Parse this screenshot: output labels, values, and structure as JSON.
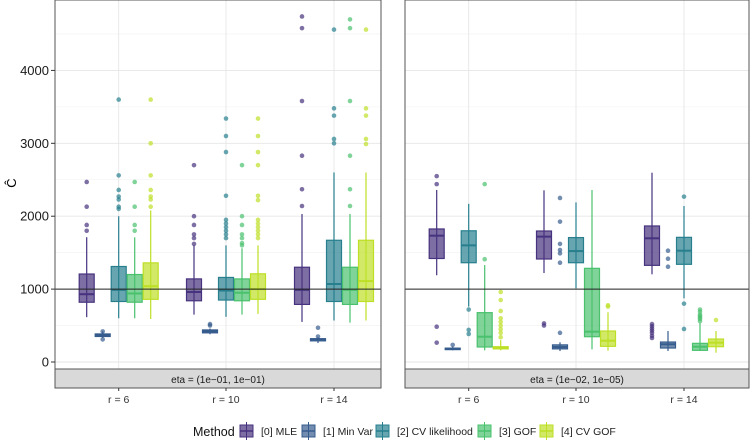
{
  "chart_data": {
    "type": "boxplot",
    "ylabel": "Ĉ",
    "xlabel": "",
    "ylim": [
      -96,
      4966
    ],
    "yticks": [
      0,
      1000,
      2000,
      3000,
      4000
    ],
    "reference_line": 1000,
    "grid": true,
    "legend": {
      "title": "Method",
      "position": "bottom"
    },
    "categories": [
      "r = 6",
      "r = 10",
      "r = 14"
    ],
    "methods": [
      {
        "name": "[0] MLE",
        "color": "#46327e"
      },
      {
        "name": "[1] Min Var",
        "color": "#365c8d"
      },
      {
        "name": "[2] CV likelihood",
        "color": "#277f8e"
      },
      {
        "name": "[3] GOF",
        "color": "#4ac16d"
      },
      {
        "name": "[4] CV GOF",
        "color": "#bddf26"
      }
    ],
    "facets": [
      {
        "label": "eta = (1e−01, 1e−01)",
        "groups": [
          [
            {
              "lo": 615,
              "q1": 820,
              "med": 930,
              "q3": 1207,
              "hi": 1712,
              "out": [
                1800,
                1880,
                2130,
                2470
              ]
            },
            {
              "lo": 330,
              "q1": 350,
              "med": 370,
              "q3": 385,
              "hi": 420,
              "out": [
                310,
                420
              ]
            },
            {
              "lo": 600,
              "q1": 830,
              "med": 990,
              "q3": 1310,
              "hi": 2000,
              "out": [
                2100,
                2130,
                2230,
                2270,
                2360,
                2560,
                3600
              ]
            },
            {
              "lo": 600,
              "q1": 820,
              "med": 940,
              "q3": 1200,
              "hi": 1710,
              "out": [
                1800,
                1880,
                2130,
                2470
              ]
            },
            {
              "lo": 590,
              "q1": 860,
              "med": 1040,
              "q3": 1360,
              "hi": 2080,
              "out": [
                2130,
                2230,
                2270,
                2360,
                2560,
                3000,
                3600
              ]
            }
          ],
          [
            {
              "lo": 650,
              "q1": 840,
              "med": 960,
              "q3": 1140,
              "hi": 1600,
              "out": [
                1620,
                1700,
                1750,
                1880,
                2000,
                2700
              ]
            },
            {
              "lo": 380,
              "q1": 400,
              "med": 420,
              "q3": 440,
              "hi": 460,
              "out": [
                500,
                520
              ]
            },
            {
              "lo": 620,
              "q1": 850,
              "med": 980,
              "q3": 1160,
              "hi": 1600,
              "out": [
                1700,
                1750,
                1800,
                1850,
                1900,
                1950,
                2280,
                2880,
                3100,
                3340
              ]
            },
            {
              "lo": 650,
              "q1": 840,
              "med": 950,
              "q3": 1140,
              "hi": 1560,
              "out": [
                1600,
                1630,
                1700,
                1750,
                1880,
                2000,
                2700
              ]
            },
            {
              "lo": 660,
              "q1": 860,
              "med": 1000,
              "q3": 1210,
              "hi": 1600,
              "out": [
                1700,
                1750,
                1800,
                1850,
                1900,
                1950,
                2220,
                2280,
                2700,
                2880,
                3100,
                3340
              ]
            }
          ],
          [
            {
              "lo": 550,
              "q1": 790,
              "med": 990,
              "q3": 1300,
              "hi": 2030,
              "out": [
                2140,
                2370,
                2830,
                3580,
                4580,
                4740
              ]
            },
            {
              "lo": 260,
              "q1": 290,
              "med": 310,
              "q3": 320,
              "hi": 340,
              "out": [
                350,
                470
              ]
            },
            {
              "lo": 570,
              "q1": 830,
              "med": 1070,
              "q3": 1670,
              "hi": 2600,
              "out": [
                3000,
                3060,
                3380,
                3480,
                4560
              ]
            },
            {
              "lo": 540,
              "q1": 790,
              "med": 990,
              "q3": 1300,
              "hi": 2030,
              "out": [
                2140,
                2370,
                2830,
                3580,
                4580,
                4700
              ]
            },
            {
              "lo": 570,
              "q1": 830,
              "med": 1110,
              "q3": 1670,
              "hi": 2600,
              "out": [
                2990,
                3060,
                3380,
                3480,
                4560
              ]
            }
          ]
        ]
      },
      {
        "label": "eta = (1e−02, 1e−05)",
        "groups": [
          [
            {
              "lo": 1190,
              "q1": 1420,
              "med": 1733,
              "q3": 1825,
              "hi": 2360,
              "out": [
                265,
                484,
                2440,
                2550
              ]
            },
            {
              "lo": 160,
              "q1": 170,
              "med": 180,
              "q3": 190,
              "hi": 210,
              "out": [
                235
              ]
            },
            {
              "lo": 760,
              "q1": 1362,
              "med": 1600,
              "q3": 1800,
              "hi": 2170,
              "out": [
                385,
                440,
                720
              ]
            },
            {
              "lo": 160,
              "q1": 206,
              "med": 347,
              "q3": 677,
              "hi": 1330,
              "out": [
                1410,
                2440
              ]
            },
            {
              "lo": 160,
              "q1": 180,
              "med": 195,
              "q3": 210,
              "hi": 300,
              "out": [
                340,
                400,
                450,
                500,
                550,
                600,
                700,
                850,
                960
              ]
            }
          ],
          [
            {
              "lo": 1220,
              "q1": 1413,
              "med": 1720,
              "q3": 1797,
              "hi": 2355,
              "out": [
                500,
                530
              ]
            },
            {
              "lo": 150,
              "q1": 180,
              "med": 205,
              "q3": 235,
              "hi": 270,
              "out": [
                400,
                1362,
                1490,
                1536,
                1620,
                1925,
                2250
              ]
            },
            {
              "lo": 1010,
              "q1": 1362,
              "med": 1522,
              "q3": 1707,
              "hi": 2190,
              "out": []
            },
            {
              "lo": 174,
              "q1": 347,
              "med": 416,
              "q3": 1285,
              "hi": 2360,
              "out": []
            },
            {
              "lo": 155,
              "q1": 215,
              "med": 292,
              "q3": 425,
              "hi": 682,
              "out": [
                760,
                778
              ]
            }
          ],
          [
            {
              "lo": 1203,
              "q1": 1326,
              "med": 1697,
              "q3": 1866,
              "hi": 2597,
              "out": [
                330,
                360,
                400,
                430,
                460,
                490,
                520
              ]
            },
            {
              "lo": 151,
              "q1": 192,
              "med": 243,
              "q3": 274,
              "hi": 425,
              "out": [
                1307,
                1417,
                1527
              ]
            },
            {
              "lo": 873,
              "q1": 1340,
              "med": 1527,
              "q3": 1710,
              "hi": 2140,
              "out": [
                453,
                800,
                2268
              ]
            },
            {
              "lo": 151,
              "q1": 160,
              "med": 210,
              "q3": 256,
              "hi": 535,
              "out": [
                560,
                590,
                610,
                630,
                650,
                690,
                720
              ]
            },
            {
              "lo": 128,
              "q1": 210,
              "med": 265,
              "q3": 315,
              "hi": 425,
              "out": [
                576
              ]
            }
          ]
        ]
      }
    ]
  }
}
